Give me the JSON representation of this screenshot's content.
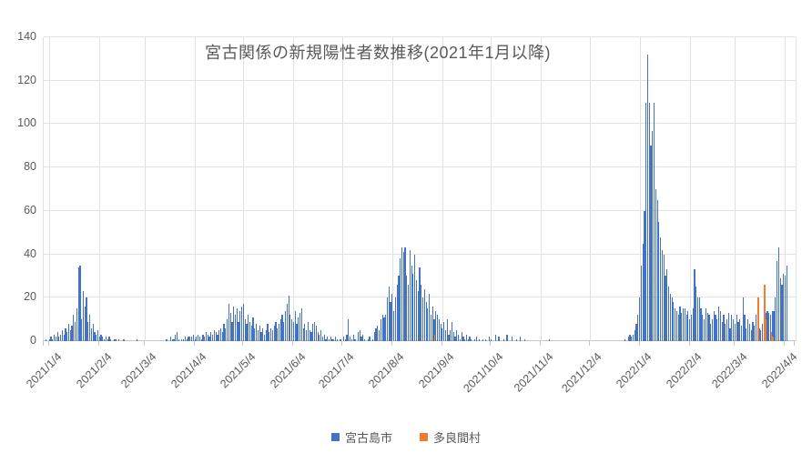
{
  "chart_data": {
    "type": "bar",
    "title": "宮古関係の新規陽性者数推移(2021年1月以降)",
    "xlabel": "",
    "ylabel": "",
    "ylim": [
      0,
      140
    ],
    "y_ticks": [
      0,
      20,
      40,
      60,
      80,
      100,
      120,
      140
    ],
    "grid": true,
    "legend_position": "bottom",
    "start_date": "2021/1/1",
    "end_date": "2022/4/10",
    "days_total": 465,
    "x_ticks": [
      {
        "label": "2021/1/4",
        "day": 3
      },
      {
        "label": "2021/2/4",
        "day": 34
      },
      {
        "label": "2021/3/4",
        "day": 62
      },
      {
        "label": "2021/4/4",
        "day": 93
      },
      {
        "label": "2021/5/4",
        "day": 123
      },
      {
        "label": "2021/6/4",
        "day": 154
      },
      {
        "label": "2021/7/4",
        "day": 184
      },
      {
        "label": "2021/8/4",
        "day": 215
      },
      {
        "label": "2021/9/4",
        "day": 246
      },
      {
        "label": "2021/10/4",
        "day": 276
      },
      {
        "label": "2021/11/4",
        "day": 307
      },
      {
        "label": "2021/12/4",
        "day": 337
      },
      {
        "label": "2022/1/4",
        "day": 368
      },
      {
        "label": "2022/2/4",
        "day": 399
      },
      {
        "label": "2022/3/4",
        "day": 427
      },
      {
        "label": "2022/4/4",
        "day": 458
      }
    ],
    "colors": {
      "grid": "#e2e2e2",
      "axis": "#c6c6c6",
      "text": "#595959"
    },
    "series": [
      {
        "name": "宮古島市",
        "color": "#4472C4",
        "values": [
          0,
          1,
          0,
          1,
          2,
          1,
          3,
          2,
          4,
          2,
          3,
          5,
          3,
          6,
          4,
          8,
          5,
          7,
          12,
          9,
          15,
          34,
          35,
          10,
          23,
          16,
          20,
          9,
          12,
          6,
          8,
          4,
          3,
          5,
          2,
          3,
          2,
          1,
          2,
          1,
          2,
          1,
          0,
          1,
          1,
          0,
          1,
          0,
          0,
          1,
          0,
          0,
          0,
          0,
          0,
          0,
          0,
          1,
          0,
          0,
          0,
          0,
          0,
          0,
          0,
          0,
          0,
          0,
          0,
          0,
          0,
          0,
          0,
          0,
          0,
          1,
          1,
          0,
          2,
          1,
          1,
          3,
          4,
          1,
          0,
          1,
          1,
          2,
          1,
          2,
          2,
          2,
          3,
          1,
          2,
          3,
          2,
          1,
          3,
          2,
          4,
          3,
          2,
          4,
          3,
          5,
          4,
          3,
          5,
          6,
          4,
          8,
          6,
          10,
          17,
          13,
          9,
          16,
          12,
          15,
          9,
          14,
          16,
          17,
          10,
          8,
          12,
          9,
          7,
          11,
          6,
          8,
          5,
          7,
          4,
          6,
          3,
          5,
          8,
          4,
          6,
          5,
          7,
          9,
          6,
          8,
          10,
          12,
          9,
          14,
          17,
          21,
          12,
          10,
          9,
          14,
          8,
          11,
          13,
          15,
          6,
          8,
          5,
          9,
          5,
          4,
          8,
          9,
          7,
          4,
          3,
          5,
          2,
          3,
          1,
          2,
          1,
          2,
          1,
          1,
          2,
          1,
          0,
          1,
          0,
          2,
          1,
          3,
          10,
          2,
          1,
          3,
          1,
          0,
          4,
          5,
          2,
          3,
          1,
          0,
          1,
          2,
          0,
          1,
          4,
          6,
          7,
          5,
          10,
          12,
          11,
          12,
          20,
          25,
          18,
          22,
          14,
          20,
          26,
          30,
          38,
          43,
          41,
          43,
          30,
          26,
          42,
          35,
          31,
          40,
          28,
          23,
          34,
          26,
          20,
          24,
          18,
          15,
          22,
          12,
          16,
          10,
          14,
          12,
          10,
          8,
          6,
          9,
          5,
          10,
          3,
          5,
          9,
          4,
          2,
          5,
          3,
          1,
          4,
          2,
          1,
          3,
          1,
          2,
          1,
          0,
          1,
          2,
          0,
          1,
          0,
          1,
          0,
          1,
          0,
          2,
          1,
          0,
          0,
          3,
          0,
          2,
          0,
          0,
          1,
          0,
          3,
          0,
          0,
          2,
          0,
          0,
          1,
          0,
          2,
          0,
          0,
          1,
          0,
          0,
          0,
          0,
          0,
          0,
          0,
          0,
          0,
          0,
          0,
          0,
          0,
          0,
          1,
          0,
          0,
          0,
          0,
          0,
          0,
          0,
          0,
          0,
          0,
          0,
          0,
          0,
          0,
          0,
          0,
          0,
          0,
          0,
          0,
          0,
          0,
          0,
          0,
          0,
          0,
          0,
          0,
          0,
          0,
          0,
          0,
          0,
          0,
          0,
          0,
          0,
          0,
          0,
          0,
          0,
          0,
          0,
          0,
          0,
          0,
          1,
          0,
          2,
          3,
          2,
          3,
          5,
          8,
          12,
          20,
          35,
          45,
          60,
          110,
          132,
          110,
          90,
          97,
          110,
          70,
          65,
          55,
          48,
          42,
          40,
          30,
          33,
          25,
          22,
          20,
          18,
          15,
          14,
          12,
          16,
          13,
          15,
          15,
          12,
          14,
          10,
          12,
          15,
          33,
          25,
          20,
          20,
          15,
          12,
          10,
          15,
          13,
          12,
          8,
          10,
          14,
          12,
          10,
          16,
          14,
          9,
          12,
          8,
          10,
          13,
          6,
          12,
          10,
          8,
          12,
          9,
          10,
          7,
          20,
          12,
          6,
          10,
          8,
          5,
          9,
          7,
          12,
          9,
          6,
          5,
          8,
          12,
          13,
          14,
          13,
          12,
          14,
          14,
          20,
          37,
          43,
          29,
          26,
          31,
          30,
          35,
          0,
          0,
          0,
          0,
          0
        ]
      },
      {
        "name": "多良間村",
        "color": "#ED7D31",
        "values_sparse": [
          {
            "date": "2021/8/30",
            "day": 241,
            "value": 3
          },
          {
            "date": "2022/3/18",
            "day": 441,
            "value": 20
          },
          {
            "date": "2022/3/22",
            "day": 445,
            "value": 26
          },
          {
            "date": "2022/3/23",
            "day": 446,
            "value": 10
          },
          {
            "date": "2022/3/26",
            "day": 449,
            "value": 4
          },
          {
            "date": "2022/3/27",
            "day": 450,
            "value": 2
          }
        ]
      }
    ]
  }
}
